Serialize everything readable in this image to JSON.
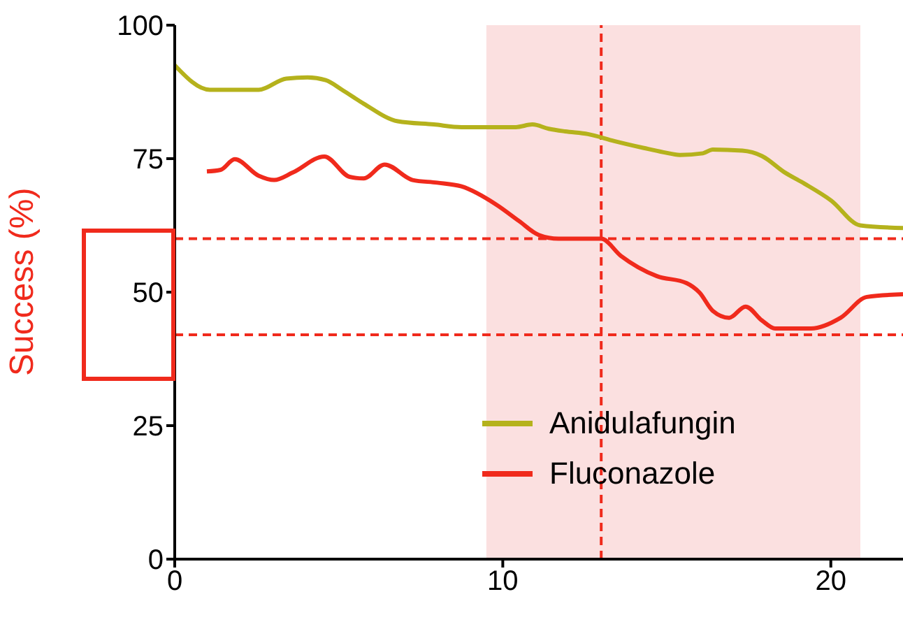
{
  "chart_data": {
    "type": "line",
    "ylabel": "Success (%)",
    "xlim": [
      0,
      22.2
    ],
    "xticks": [
      0,
      10,
      20
    ],
    "ylim": [
      0,
      100
    ],
    "yticks": [
      0,
      25,
      50,
      75,
      100
    ],
    "grid": false,
    "legend": "bottom right",
    "marker": "none",
    "line_style": "solid",
    "series": [
      {
        "name": "Anidulafungin",
        "color": "#b5b21c",
        "x": [
          0,
          1.07,
          2.56,
          3.4,
          4.05,
          4.6,
          5.1,
          5.76,
          6.8,
          7.9,
          8.74,
          10.4,
          10.9,
          11.4,
          11.9,
          12.6,
          13.4,
          14.3,
          14.9,
          15.4,
          16.1,
          16.4,
          17.3,
          17.9,
          18.6,
          19.2,
          20,
          20.9,
          22.2
        ],
        "values": [
          92.5,
          87.9,
          87.9,
          90,
          90.2,
          89.7,
          87.9,
          85.3,
          82,
          81.4,
          80.9,
          80.9,
          81.4,
          80.6,
          80.1,
          79.6,
          78.3,
          77,
          76.2,
          75.7,
          76,
          76.7,
          76.5,
          75.5,
          72.4,
          70.3,
          67.2,
          62.5,
          62
        ]
      },
      {
        "name": "Fluconazole",
        "color": "#f02a1c",
        "x": [
          0.98,
          1.4,
          1.83,
          2.56,
          3.03,
          3.6,
          4.56,
          5.33,
          5.76,
          6.4,
          7.25,
          8,
          8.74,
          9.8,
          10.5,
          11.1,
          11.7,
          13,
          13.6,
          14.7,
          15.6,
          16,
          16.4,
          16.9,
          17.4,
          17.9,
          18.3,
          19.4,
          20.3,
          21.1,
          22.2
        ],
        "values": [
          72.6,
          72.9,
          74.9,
          71.8,
          71,
          72.4,
          75.4,
          71.6,
          71.3,
          73.9,
          71,
          70.5,
          69.8,
          66.4,
          63.3,
          60.7,
          60,
          60,
          56.8,
          53,
          51.7,
          49.9,
          46.5,
          45.2,
          47.3,
          44.7,
          43.2,
          43.2,
          45.2,
          49.1,
          49.6
        ]
      }
    ],
    "ref_lines": [
      {
        "axis": "y",
        "value": 60,
        "color": "#f02a1c",
        "line_style": "dashed"
      },
      {
        "axis": "y",
        "value": 42,
        "color": "#f02a1c",
        "line_style": "dashed"
      },
      {
        "axis": "x",
        "value": 13,
        "color": "#f02a1c",
        "line_style": "dashed"
      }
    ],
    "bands": [
      {
        "axis": "x",
        "from": 9.5,
        "to": 20.9,
        "color": "#fbe0e0"
      }
    ]
  }
}
